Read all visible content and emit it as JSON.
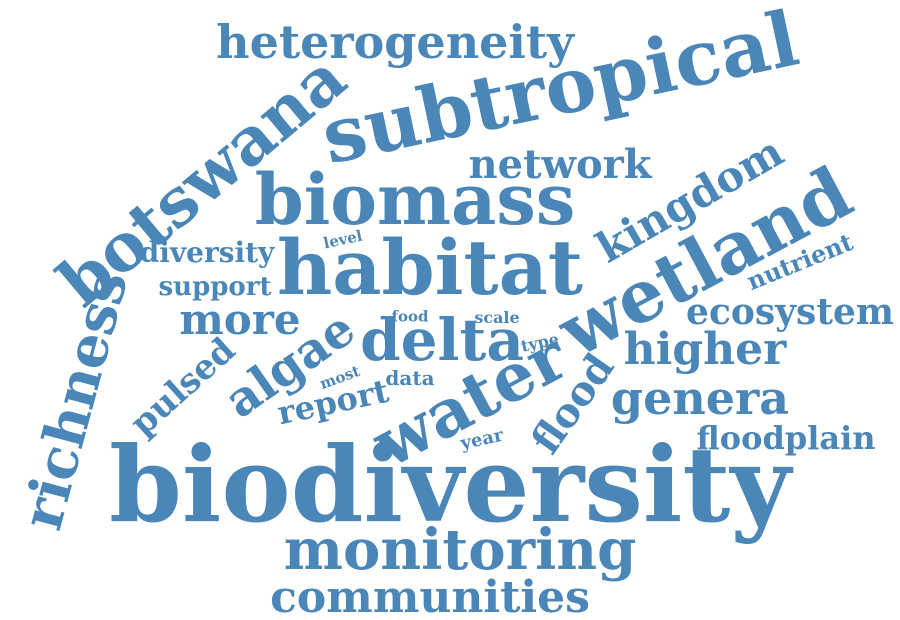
{
  "color": "#4a86b8",
  "words": [
    {
      "id": "biodiversity",
      "text": "biodiversity"
    },
    {
      "id": "subtropical",
      "text": "subtropical"
    },
    {
      "id": "wetland",
      "text": "wetland"
    },
    {
      "id": "habitat",
      "text": "habitat"
    },
    {
      "id": "biomass",
      "text": "biomass"
    },
    {
      "id": "botswana",
      "text": "botswana"
    },
    {
      "id": "water",
      "text": "water"
    },
    {
      "id": "delta",
      "text": "delta"
    },
    {
      "id": "monitoring",
      "text": "monitoring"
    },
    {
      "id": "richness",
      "text": "richness"
    },
    {
      "id": "heterogeneity",
      "text": "heterogeneity"
    },
    {
      "id": "communities",
      "text": "communities"
    },
    {
      "id": "genera",
      "text": "genera"
    },
    {
      "id": "higher",
      "text": "higher"
    },
    {
      "id": "algae",
      "text": "algae"
    },
    {
      "id": "kingdom",
      "text": "kingdom"
    },
    {
      "id": "network",
      "text": "network"
    },
    {
      "id": "ecosystem",
      "text": "ecosystem"
    },
    {
      "id": "flood",
      "text": "flood"
    },
    {
      "id": "more",
      "text": "more"
    },
    {
      "id": "floodplain",
      "text": "floodplain"
    },
    {
      "id": "pulsed",
      "text": "pulsed"
    },
    {
      "id": "report",
      "text": "report"
    },
    {
      "id": "diversity",
      "text": "diversity"
    },
    {
      "id": "support",
      "text": "support"
    },
    {
      "id": "nutrient",
      "text": "nutrient"
    },
    {
      "id": "data",
      "text": "data"
    },
    {
      "id": "year",
      "text": "year"
    },
    {
      "id": "most",
      "text": "most"
    },
    {
      "id": "scale",
      "text": "scale"
    },
    {
      "id": "food",
      "text": "food"
    },
    {
      "id": "type",
      "text": "type"
    },
    {
      "id": "level",
      "text": "level"
    }
  ]
}
